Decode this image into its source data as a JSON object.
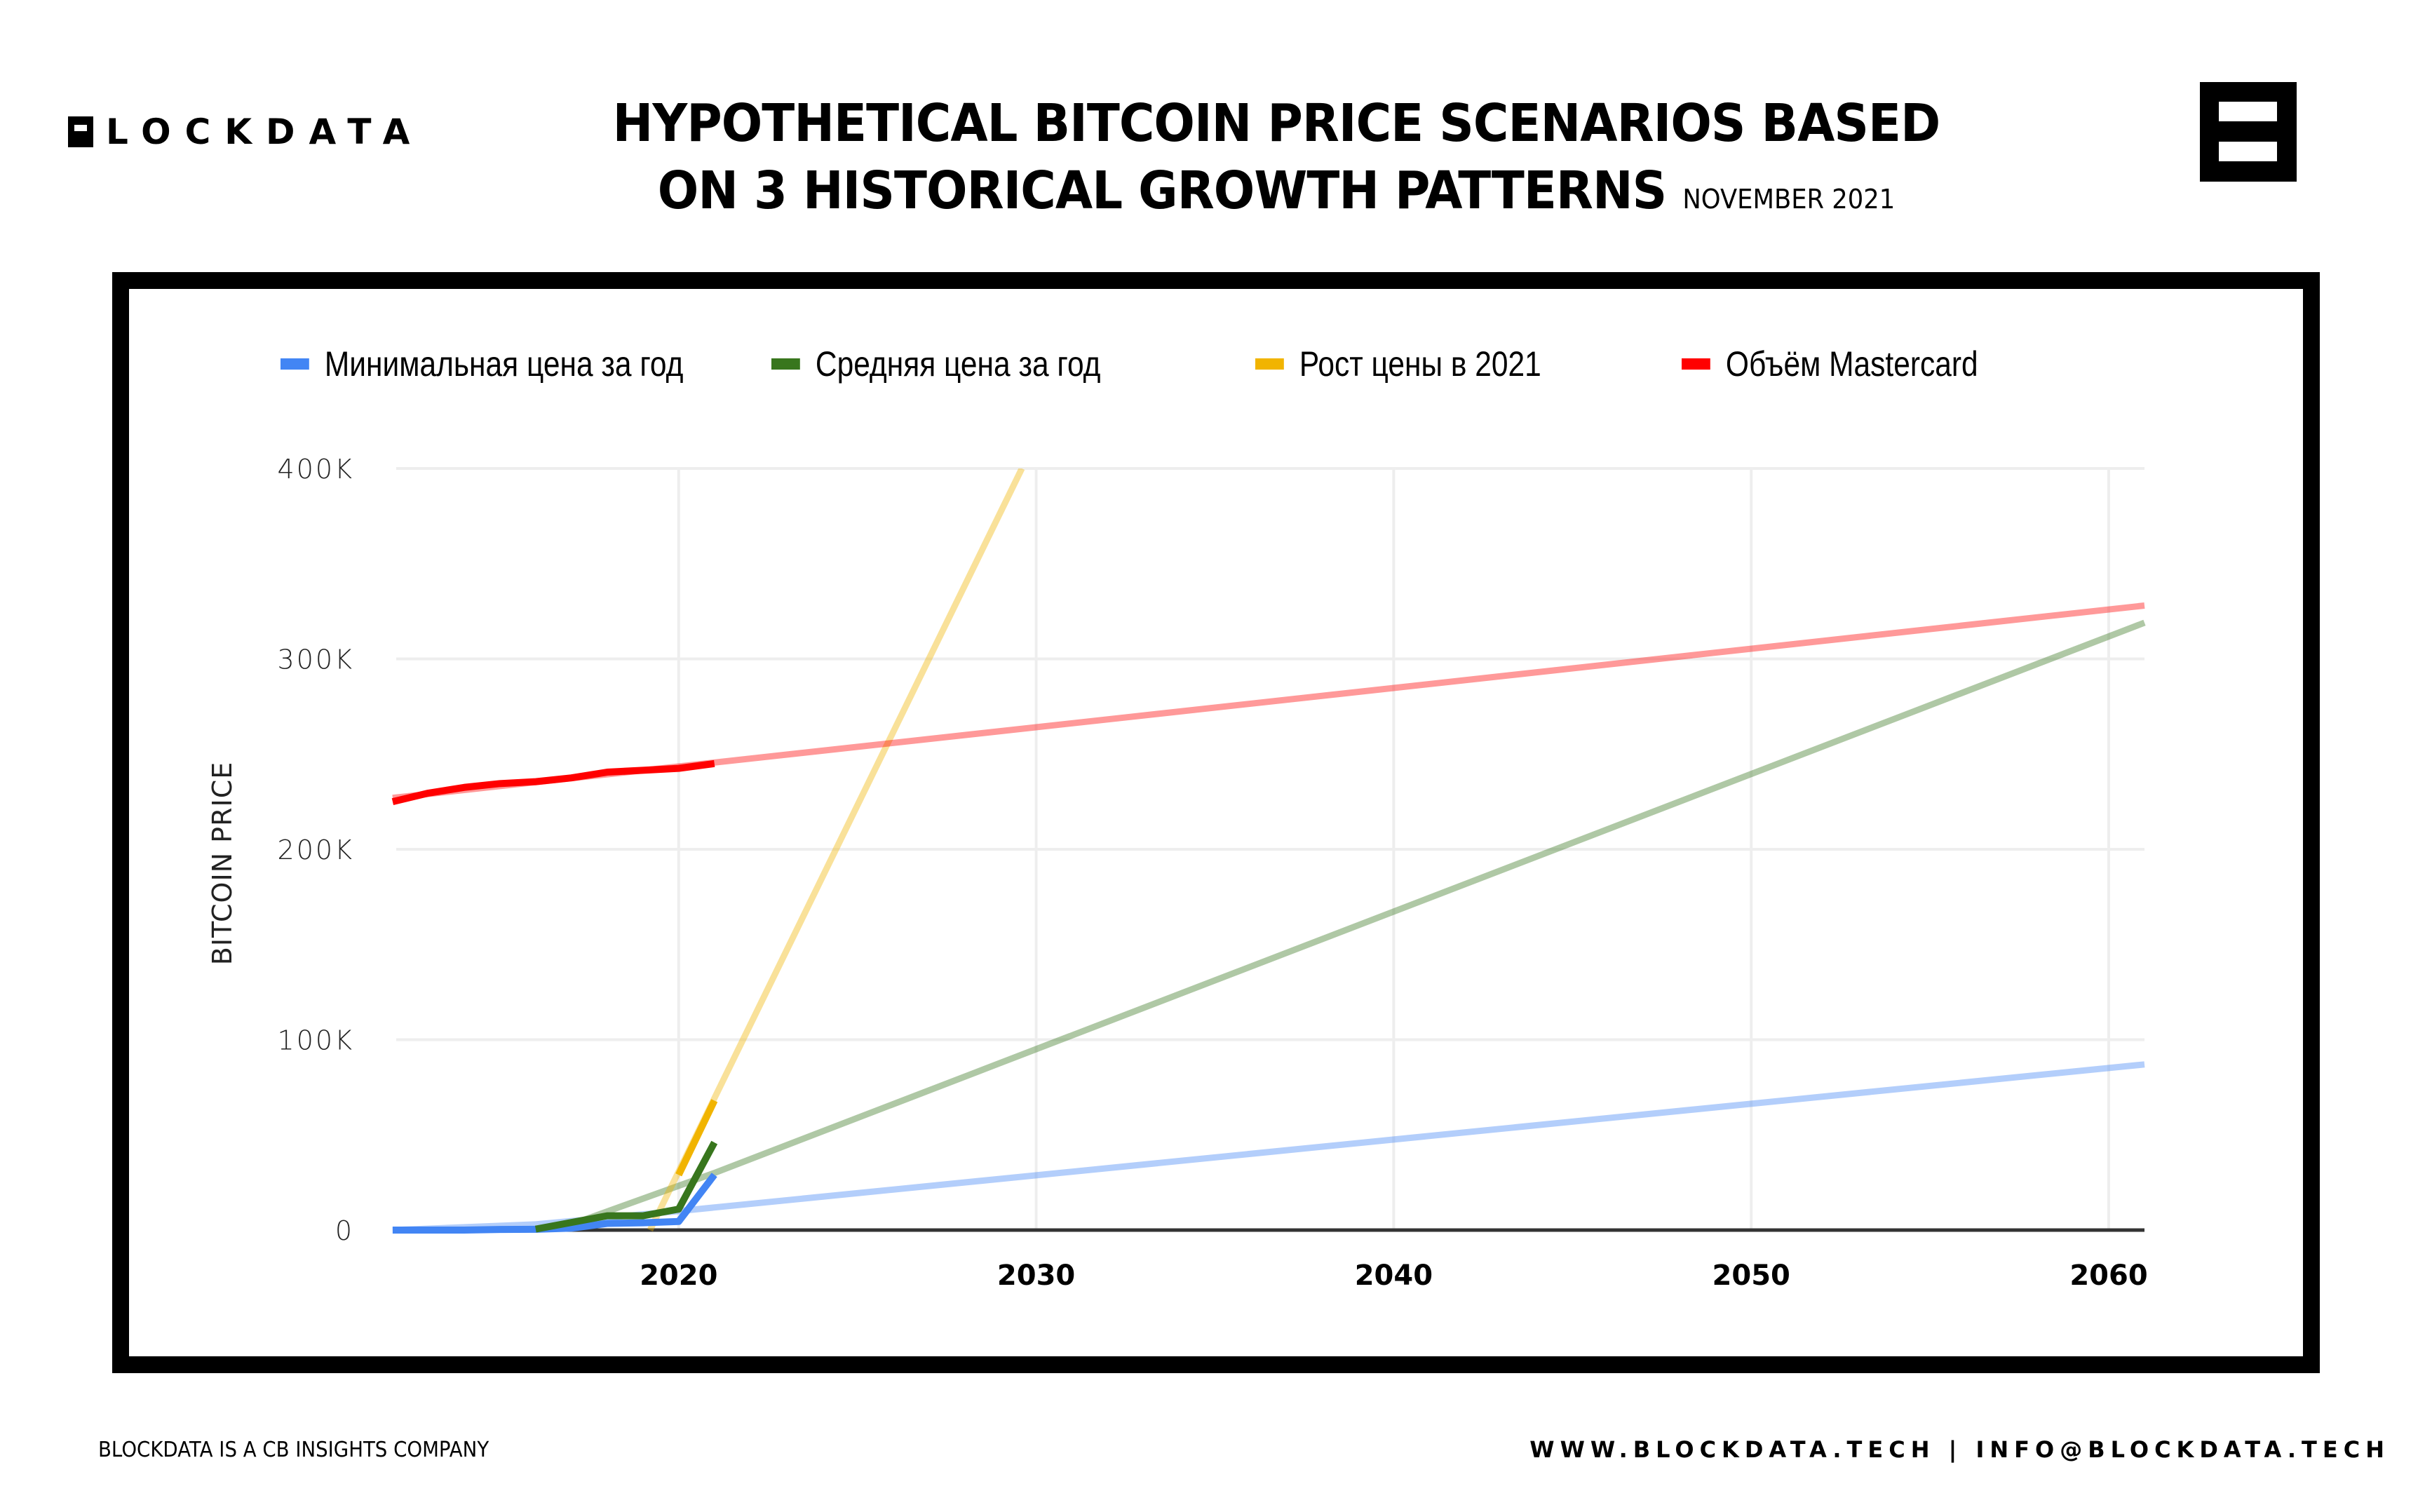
{
  "header": {
    "brand": "LOCKDATA",
    "brand_full": "BLOCKDATA",
    "title_line1": "HYPOTHETICAL BITCOIN PRICE SCENARIOS BASED",
    "title_line2": "ON 3 HISTORICAL GROWTH PATTERNS",
    "date": "NOVEMBER 2021"
  },
  "footer": {
    "left": "BLOCKDATA IS A CB INSIGHTS COMPANY",
    "right": "WWW.BLOCKDATA.TECH | INFO@BLOCKDATA.TECH"
  },
  "chart_data": {
    "type": "line",
    "title": "Hypothetical Bitcoin Price Scenarios Based on 3 Historical Growth Patterns",
    "xlabel": "",
    "ylabel": "BITCOIN PRICE",
    "xlim": [
      2012.1,
      2061
    ],
    "ylim": [
      0,
      400000
    ],
    "grid": true,
    "legend_position": "top",
    "x_ticks": [
      "2020",
      "2030",
      "2040",
      "2050",
      "2060"
    ],
    "x_tick_values": [
      2020,
      2030,
      2040,
      2050,
      2060
    ],
    "y_ticks": [
      "0",
      "100K",
      "200K",
      "300K",
      "400K"
    ],
    "y_tick_values": [
      0,
      100000,
      200000,
      300000,
      400000
    ],
    "series": [
      {
        "name": "Минимальная цена за год",
        "color": "#4285f4",
        "actual": {
          "x": [
            2012,
            2013,
            2014,
            2015,
            2016,
            2017,
            2018,
            2019,
            2020,
            2021
          ],
          "y": [
            0,
            0,
            0,
            300,
            400,
            1000,
            3500,
            3800,
            4500,
            29000
          ]
        },
        "trend": {
          "x": [
            2012,
            2016,
            2020,
            2061
          ],
          "y": [
            0,
            3000,
            10000,
            87000
          ]
        }
      },
      {
        "name": "Средняя цена за год",
        "color": "#38761d",
        "actual": {
          "x": [
            2016,
            2017,
            2018,
            2019,
            2020,
            2021
          ],
          "y": [
            500,
            4000,
            7500,
            7500,
            11000,
            46000
          ]
        },
        "trend": {
          "x": [
            2017,
            2021,
            2061
          ],
          "y": [
            3000,
            30000,
            319000
          ]
        }
      },
      {
        "name": "Рост цены в 2021",
        "color": "#f1b400",
        "actual": {
          "x": [
            2020,
            2021
          ],
          "y": [
            29000,
            68000
          ]
        },
        "trend": {
          "x": [
            2019.2,
            2029.6
          ],
          "y": [
            0,
            400000
          ]
        }
      },
      {
        "name": "Объём Mastercard",
        "color": "#ff0000",
        "actual": {
          "x": [
            2012,
            2013,
            2014,
            2015,
            2016,
            2017,
            2018,
            2019,
            2020,
            2021
          ],
          "y": [
            225000,
            229500,
            232500,
            234500,
            235500,
            237500,
            240500,
            241500,
            242500,
            245000
          ]
        },
        "trend": {
          "x": [
            2012,
            2061
          ],
          "y": [
            227000,
            328000
          ]
        }
      }
    ]
  }
}
